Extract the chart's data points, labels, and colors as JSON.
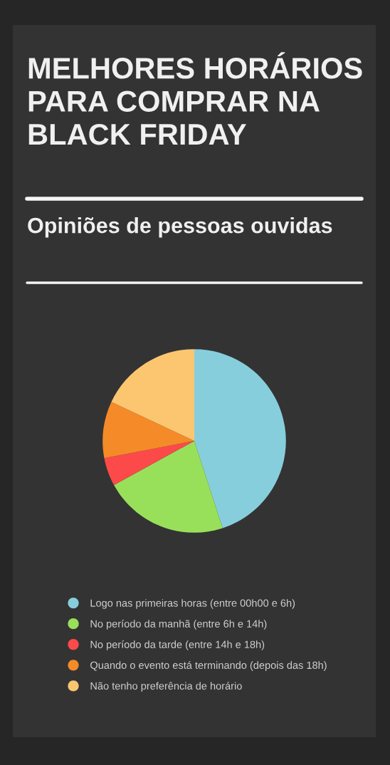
{
  "chart_data": {
    "type": "pie",
    "title": "MELHORES HORÁRIOS PARA COMPRAR NA BLACK FRIDAY",
    "subtitle": "Opiniões de pessoas ouvidas",
    "categories": [
      "Logo nas primeiras horas (entre 00h00 e 6h)",
      "No período da manhã (entre 6h e 14h)",
      "No período da tarde (entre 14h e 18h)",
      "Quando o evento está terminando (depois das 18h)",
      "Não tenho preferência de horário"
    ],
    "values": [
      45,
      22,
      5,
      10,
      18
    ],
    "colors": [
      "#87cedd",
      "#98e05a",
      "#fc4a4a",
      "#f58a28",
      "#fbc66f"
    ],
    "legend": "bottom"
  }
}
